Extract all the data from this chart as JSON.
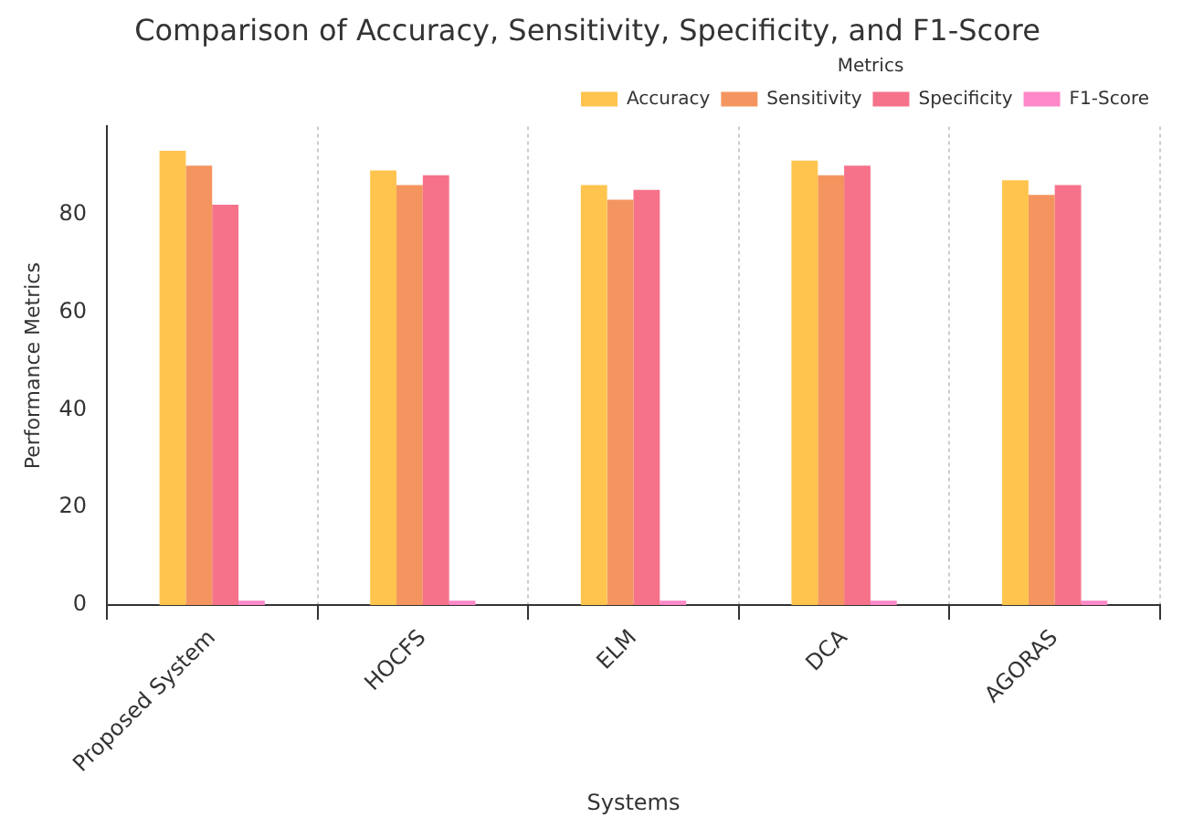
{
  "chart_data": {
    "type": "bar",
    "title": "Comparison of Accuracy, Sensitivity, Specificity, and F1-Score",
    "xlabel": "Systems",
    "ylabel": "Performance Metrics",
    "legend_title": "Metrics",
    "categories": [
      "Proposed System",
      "HOCFS",
      "ELM",
      "DCA",
      "AGORAS"
    ],
    "series": [
      {
        "name": "Accuracy",
        "color": "#ffc44d",
        "values": [
          93,
          89,
          86,
          91,
          87
        ]
      },
      {
        "name": "Sensitivity",
        "color": "#f4955f",
        "values": [
          90,
          86,
          83,
          88,
          84
        ]
      },
      {
        "name": "Specificity",
        "color": "#f6728a",
        "values": [
          82,
          88,
          85,
          90,
          86
        ]
      },
      {
        "name": "F1-Score",
        "color": "#ff88c8",
        "values": [
          0.9,
          0.9,
          0.9,
          0.9,
          0.9
        ]
      }
    ],
    "ylim": [
      0,
      98
    ],
    "yticks": [
      0,
      20,
      40,
      60,
      80
    ],
    "grid": "x",
    "legend": "top right"
  }
}
